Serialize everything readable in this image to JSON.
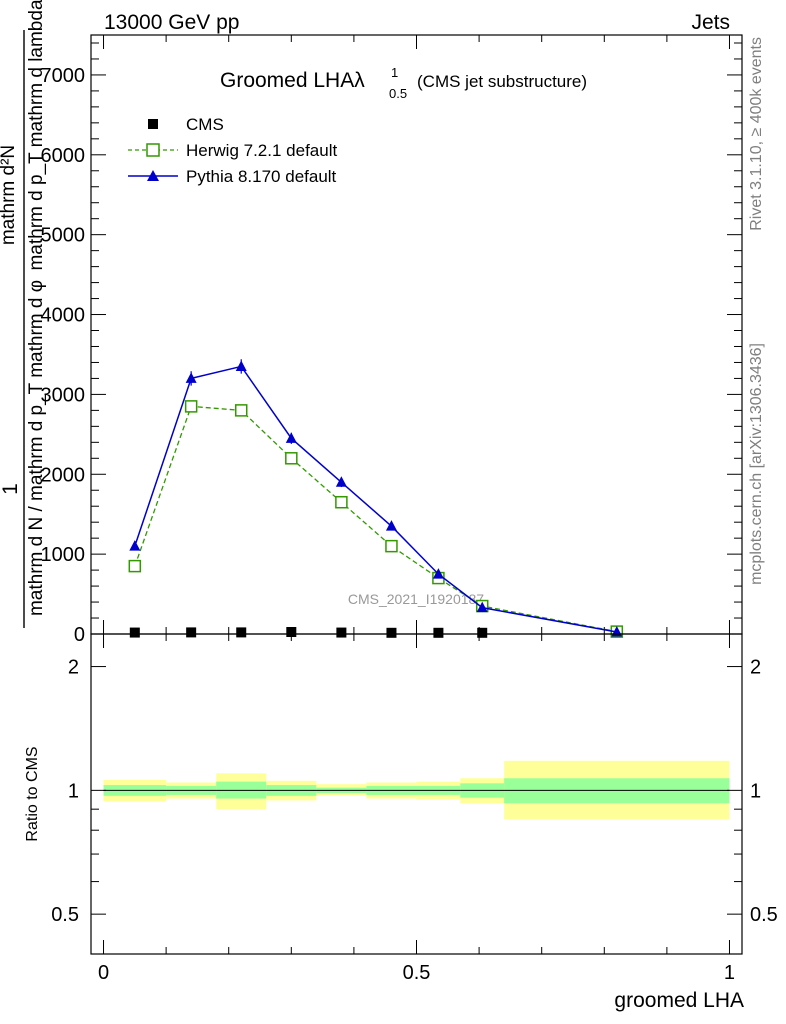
{
  "header": {
    "energy_label": "13000 GeV pp",
    "process_label": "Jets",
    "rivet_label": "Rivet 3.1.10, ≥ 400k events",
    "source_label": "mcplots.cern.ch [arXiv:1306.3436]",
    "analysis_watermark": "CMS_2021_I1920187"
  },
  "colors": {
    "cms": "#000000",
    "herwig": "#339900",
    "pythia": "#0000cc",
    "band_inner": "#99ff99",
    "band_outer": "#ffff99"
  },
  "chart_data": [
    {
      "type": "line",
      "title": "Groomed LHA",
      "title_symbol": "λ",
      "title_superscript": "1",
      "title_subscript": "0.5",
      "title_suffix": "(CMS jet substructure)",
      "xlabel": "groomed LHA",
      "ylabel_numerator": "1",
      "ylabel_denominator": "mathrm d N / mathrm d p_T mathrm d φ",
      "ylabel_numerator_full": "mathrm d²N",
      "ylabel_denominator_full": "mathrm d p_T mathrm d lambda",
      "xlim": [
        -0.02,
        1.02
      ],
      "ylim": [
        0,
        7500
      ],
      "yticks": [
        0,
        1000,
        2000,
        3000,
        4000,
        5000,
        6000,
        7000
      ],
      "ytick_labels": [
        "0",
        "1000",
        "2000",
        "3000",
        "4000",
        "5000",
        "6000",
        "7000"
      ],
      "legend": [
        "CMS",
        "Herwig 7.2.1 default",
        "Pythia 8.170 default"
      ],
      "series": [
        {
          "name": "CMS",
          "marker": "square-filled",
          "x": [
            0.05,
            0.14,
            0.22,
            0.3,
            0.38,
            0.46,
            0.535,
            0.605
          ],
          "y": [
            18,
            20,
            20,
            25,
            18,
            15,
            15,
            15
          ]
        },
        {
          "name": "Herwig 7.2.1 default",
          "marker": "square-open",
          "style": "dashed",
          "x": [
            0.05,
            0.14,
            0.22,
            0.3,
            0.38,
            0.46,
            0.535,
            0.605,
            0.82
          ],
          "y": [
            850,
            2850,
            2800,
            2200,
            1650,
            1100,
            700,
            350,
            30
          ]
        },
        {
          "name": "Pythia 8.170 default",
          "marker": "triangle-filled",
          "style": "solid",
          "x": [
            0.05,
            0.14,
            0.22,
            0.3,
            0.38,
            0.46,
            0.535,
            0.605,
            0.82
          ],
          "y": [
            1100,
            3200,
            3350,
            2450,
            1900,
            1350,
            750,
            330,
            25
          ],
          "yerr": [
            30,
            90,
            90,
            70,
            60,
            50,
            30,
            15,
            5
          ]
        }
      ]
    },
    {
      "type": "area",
      "ylabel": "Ratio to CMS",
      "xlabel": "groomed LHA",
      "xlim": [
        -0.02,
        1.02
      ],
      "ylim": [
        0.4,
        2.4
      ],
      "yscale": "log",
      "xticks": [
        0,
        0.5,
        1
      ],
      "xtick_labels": [
        "0",
        "0.5",
        "1"
      ],
      "yticks": [
        0.5,
        1,
        2
      ],
      "ytick_labels": [
        "0.5",
        "1",
        "2"
      ],
      "reference_line": 1,
      "bins": [
        {
          "x_low": 0.0,
          "x_high": 0.1,
          "inner": [
            0.97,
            1.03
          ],
          "outer": [
            0.94,
            1.06
          ]
        },
        {
          "x_low": 0.1,
          "x_high": 0.18,
          "inner": [
            0.975,
            1.025
          ],
          "outer": [
            0.955,
            1.045
          ]
        },
        {
          "x_low": 0.18,
          "x_high": 0.26,
          "inner": [
            0.955,
            1.05
          ],
          "outer": [
            0.9,
            1.1
          ]
        },
        {
          "x_low": 0.26,
          "x_high": 0.34,
          "inner": [
            0.97,
            1.03
          ],
          "outer": [
            0.945,
            1.055
          ]
        },
        {
          "x_low": 0.34,
          "x_high": 0.42,
          "inner": [
            0.985,
            1.015
          ],
          "outer": [
            0.97,
            1.035
          ]
        },
        {
          "x_low": 0.42,
          "x_high": 0.5,
          "inner": [
            0.975,
            1.025
          ],
          "outer": [
            0.955,
            1.045
          ]
        },
        {
          "x_low": 0.5,
          "x_high": 0.57,
          "inner": [
            0.975,
            1.025
          ],
          "outer": [
            0.95,
            1.05
          ]
        },
        {
          "x_low": 0.57,
          "x_high": 0.64,
          "inner": [
            0.96,
            1.04
          ],
          "outer": [
            0.93,
            1.07
          ]
        },
        {
          "x_low": 0.64,
          "x_high": 1.0,
          "inner": [
            0.93,
            1.07
          ],
          "outer": [
            0.85,
            1.18
          ]
        }
      ]
    }
  ]
}
